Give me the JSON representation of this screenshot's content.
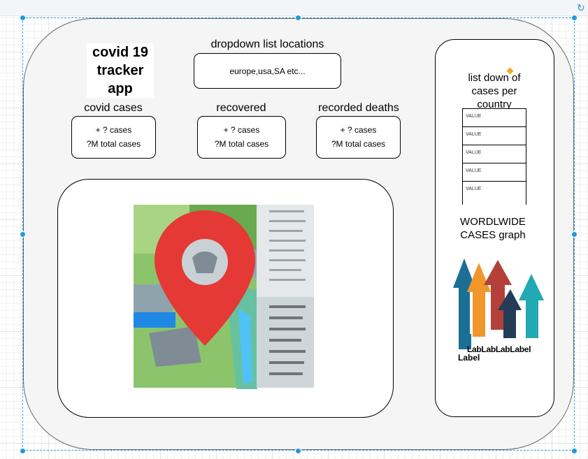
{
  "app": {
    "title_line1": "covid 19",
    "title_line2": "tracker",
    "title_line3": "app"
  },
  "dropdown": {
    "label": "dropdown list locations",
    "value": "europe,usa,SA  etc..."
  },
  "stats": [
    {
      "label": "covid cases",
      "line1": "+ ? cases",
      "line2": "?M total cases"
    },
    {
      "label": "recovered",
      "line1": "+ ? cases",
      "line2": "?M total cases"
    },
    {
      "label": "recorded deaths",
      "line1": "+ ? cases",
      "line2": "?M total cases"
    }
  ],
  "country_list": {
    "label": "list down of cases per country",
    "rows": [
      "VALUE",
      "VALUE",
      "VALUE",
      "VALUE",
      "VALUE"
    ]
  },
  "graph": {
    "label": "WORDLWIDE CASES graph",
    "labels_row": "LabLabLabLabel",
    "label_below": "Label",
    "colors": [
      "#1b6f95",
      "#f0962a",
      "#b5403a",
      "#233d57",
      "#21aab1"
    ]
  },
  "icons": {
    "map": "map-pin-icon",
    "graph": "rising-arrows-icon",
    "refresh": "refresh-icon"
  }
}
